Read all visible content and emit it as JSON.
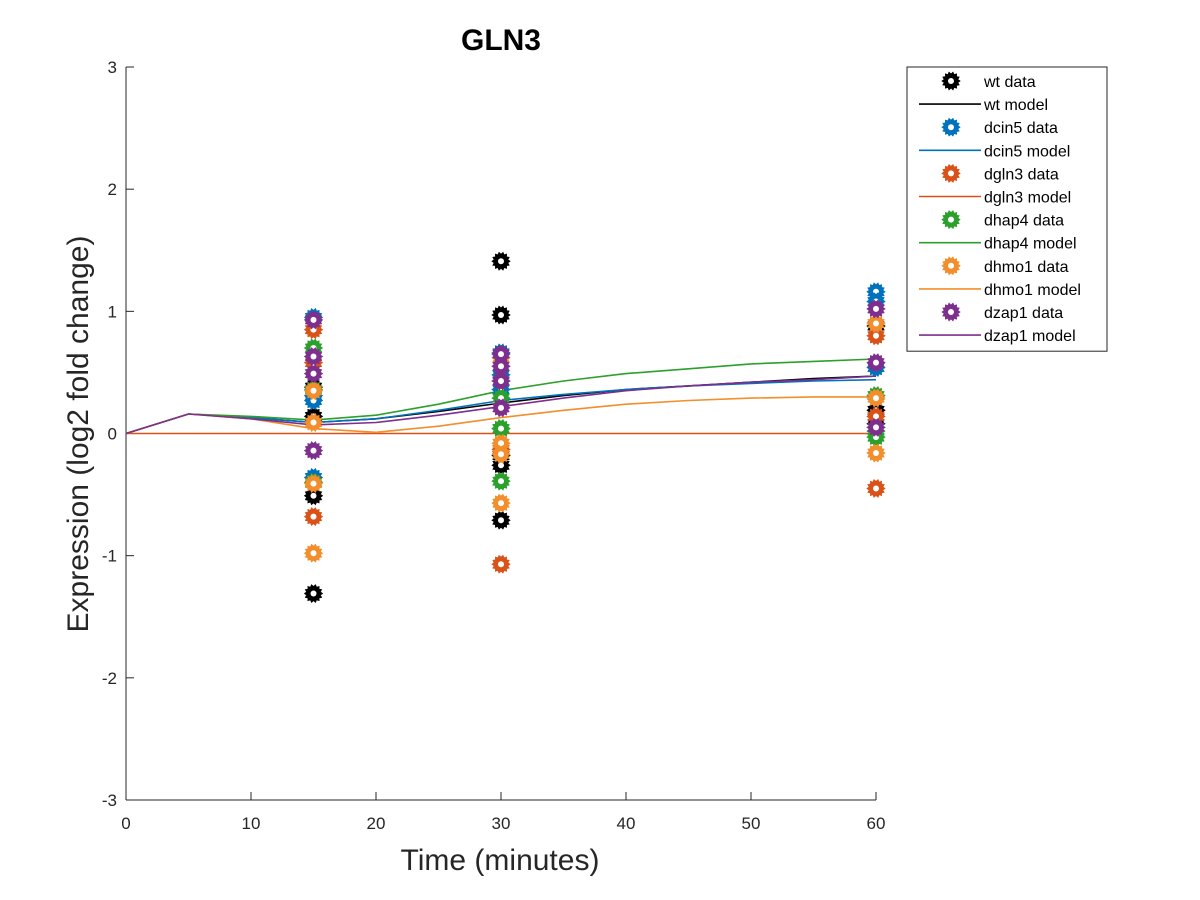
{
  "chart_data": {
    "type": "scatter",
    "title": "GLN3",
    "xlabel": "Time (minutes)",
    "ylabel": "Expression (log2 fold change)",
    "xlim": [
      0,
      60
    ],
    "ylim": [
      -3,
      3
    ],
    "xticks": [
      0,
      10,
      20,
      30,
      40,
      50,
      60
    ],
    "yticks": [
      -3,
      -2,
      -1,
      0,
      1,
      2,
      3
    ],
    "grid": false,
    "legend_position": "outside-top-right",
    "model_x": [
      0,
      5,
      10,
      15,
      20,
      25,
      30,
      35,
      40,
      45,
      50,
      55,
      60
    ],
    "series": [
      {
        "name": "wt",
        "data_label": "wt data",
        "model_label": "wt model",
        "color": "#000000",
        "data_x": [
          15,
          15,
          15,
          15,
          30,
          30,
          30,
          30,
          30,
          60,
          60,
          60
        ],
        "data_y": [
          -1.31,
          -0.51,
          0.14,
          0.38,
          1.41,
          0.97,
          -0.18,
          -0.26,
          -0.71,
          0.88,
          0.19,
          0.08
        ],
        "model_y": [
          0.0,
          0.16,
          0.13,
          0.09,
          0.12,
          0.18,
          0.25,
          0.31,
          0.36,
          0.39,
          0.42,
          0.45,
          0.47
        ]
      },
      {
        "name": "dcin5",
        "data_label": "dcin5 data",
        "model_label": "dcin5 model",
        "color": "#0072BD",
        "data_x": [
          15,
          15,
          15,
          15,
          30,
          30,
          30,
          60,
          60,
          60
        ],
        "data_y": [
          0.95,
          0.31,
          0.27,
          -0.36,
          0.66,
          0.48,
          0.36,
          1.16,
          1.08,
          0.54
        ],
        "model_y": [
          0.0,
          0.16,
          0.13,
          0.09,
          0.12,
          0.19,
          0.27,
          0.32,
          0.36,
          0.39,
          0.41,
          0.43,
          0.44
        ]
      },
      {
        "name": "dgln3",
        "data_label": "dgln3 data",
        "model_label": "dgln3 model",
        "color": "#D95319",
        "data_x": [
          15,
          15,
          15,
          30,
          30,
          30,
          60,
          60,
          60
        ],
        "data_y": [
          0.85,
          0.58,
          -0.68,
          0.43,
          -0.13,
          -1.07,
          0.8,
          0.14,
          -0.45
        ],
        "model_y": [
          0.0,
          0.0,
          0.0,
          0.0,
          0.0,
          0.0,
          0.0,
          0.0,
          0.0,
          0.0,
          0.0,
          0.0,
          0.0
        ]
      },
      {
        "name": "dhap4",
        "data_label": "dhap4 data",
        "model_label": "dhap4 model",
        "color": "#2CA02C",
        "data_x": [
          15,
          15,
          15,
          30,
          30,
          30,
          30,
          60,
          60,
          60
        ],
        "data_y": [
          0.7,
          0.36,
          -0.4,
          0.29,
          0.04,
          0.04,
          -0.39,
          0.31,
          0.02,
          -0.03
        ],
        "model_y": [
          0.0,
          0.16,
          0.14,
          0.11,
          0.15,
          0.24,
          0.35,
          0.43,
          0.49,
          0.53,
          0.57,
          0.59,
          0.61
        ]
      },
      {
        "name": "dhmo1",
        "data_label": "dhmo1 data",
        "model_label": "dhmo1 model",
        "color": "#F28E2B",
        "data_x": [
          15,
          15,
          15,
          15,
          30,
          30,
          30,
          30,
          60,
          60,
          60
        ],
        "data_y": [
          0.35,
          0.09,
          -0.41,
          -0.98,
          0.62,
          -0.08,
          -0.17,
          -0.57,
          0.9,
          0.29,
          -0.16
        ],
        "model_y": [
          0.0,
          0.16,
          0.12,
          0.04,
          0.01,
          0.06,
          0.13,
          0.19,
          0.24,
          0.27,
          0.29,
          0.3,
          0.3
        ]
      },
      {
        "name": "dzap1",
        "data_label": "dzap1 data",
        "model_label": "dzap1 model",
        "color": "#7E2F8E",
        "data_x": [
          15,
          15,
          15,
          15,
          30,
          30,
          30,
          30,
          60,
          60,
          60
        ],
        "data_y": [
          0.93,
          0.63,
          0.49,
          -0.14,
          0.65,
          0.43,
          0.21,
          0.55,
          1.02,
          0.58,
          0.05
        ],
        "model_y": [
          0.0,
          0.16,
          0.12,
          0.07,
          0.09,
          0.15,
          0.22,
          0.29,
          0.35,
          0.39,
          0.42,
          0.44,
          0.47
        ]
      }
    ]
  }
}
